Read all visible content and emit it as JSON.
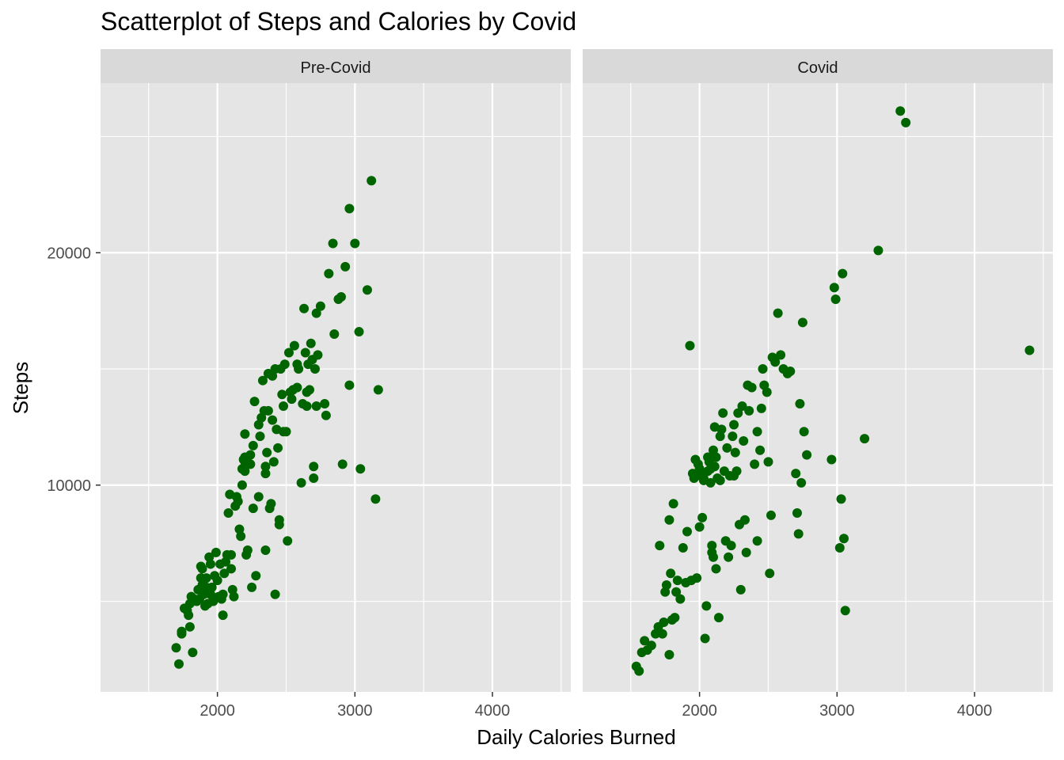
{
  "chart_data": {
    "type": "scatter",
    "title": "Scatterplot of Steps and Calories by Covid",
    "xlabel": "Daily Calories Burned",
    "ylabel": "Steps",
    "xlim": [
      1150,
      4570
    ],
    "ylim": [
      1100,
      27300
    ],
    "x_ticks": [
      2000,
      3000,
      4000
    ],
    "x_tick_labels": [
      "2000",
      "3000",
      "4000"
    ],
    "y_ticks": [
      10000,
      20000
    ],
    "y_tick_labels": [
      "10000",
      "20000"
    ],
    "grid": true,
    "point_color": "#006400",
    "panel_color": "#e5e5e5",
    "strip_color": "#d9d9d9",
    "facets": [
      {
        "label": "Pre-Covid",
        "points": [
          [
            1700,
            3000
          ],
          [
            1720,
            2300
          ],
          [
            1740,
            3600
          ],
          [
            1740,
            3700
          ],
          [
            1760,
            4700
          ],
          [
            1780,
            4600
          ],
          [
            1790,
            4400
          ],
          [
            1800,
            4900
          ],
          [
            1800,
            3900
          ],
          [
            1810,
            5200
          ],
          [
            1820,
            2800
          ],
          [
            1830,
            5100
          ],
          [
            1850,
            5000
          ],
          [
            1860,
            5500
          ],
          [
            1870,
            5100
          ],
          [
            1880,
            6000
          ],
          [
            1880,
            6500
          ],
          [
            1890,
            6400
          ],
          [
            1890,
            5700
          ],
          [
            1900,
            5300
          ],
          [
            1910,
            4800
          ],
          [
            1920,
            5600
          ],
          [
            1920,
            6000
          ],
          [
            1930,
            4900
          ],
          [
            1940,
            6900
          ],
          [
            1950,
            6600
          ],
          [
            1950,
            5300
          ],
          [
            1960,
            5600
          ],
          [
            1970,
            5000
          ],
          [
            1980,
            6100
          ],
          [
            1990,
            7100
          ],
          [
            2000,
            5900
          ],
          [
            2010,
            5200
          ],
          [
            2020,
            6600
          ],
          [
            2030,
            5100
          ],
          [
            2040,
            4400
          ],
          [
            2040,
            5300
          ],
          [
            2050,
            6200
          ],
          [
            2060,
            6700
          ],
          [
            2070,
            7000
          ],
          [
            2080,
            8800
          ],
          [
            2090,
            9600
          ],
          [
            2100,
            7000
          ],
          [
            2100,
            6400
          ],
          [
            2110,
            5500
          ],
          [
            2120,
            5200
          ],
          [
            2130,
            9100
          ],
          [
            2140,
            9500
          ],
          [
            2150,
            9300
          ],
          [
            2160,
            8100
          ],
          [
            2170,
            7800
          ],
          [
            2180,
            10000
          ],
          [
            2180,
            10700
          ],
          [
            2190,
            11100
          ],
          [
            2200,
            11000
          ],
          [
            2200,
            10600
          ],
          [
            2200,
            12200
          ],
          [
            2210,
            7000
          ],
          [
            2220,
            7200
          ],
          [
            2240,
            11300
          ],
          [
            2240,
            10900
          ],
          [
            2250,
            5600
          ],
          [
            2260,
            11700
          ],
          [
            2270,
            13600
          ],
          [
            2280,
            6100
          ],
          [
            2300,
            9500
          ],
          [
            2310,
            12100
          ],
          [
            2320,
            12900
          ],
          [
            2330,
            14500
          ],
          [
            2340,
            13200
          ],
          [
            2350,
            10500
          ],
          [
            2350,
            10800
          ],
          [
            2350,
            7200
          ],
          [
            2360,
            11400
          ],
          [
            2370,
            13200
          ],
          [
            2380,
            9000
          ],
          [
            2390,
            9200
          ],
          [
            2400,
            12800
          ],
          [
            2400,
            14700
          ],
          [
            2410,
            11000
          ],
          [
            2420,
            5300
          ],
          [
            2430,
            12400
          ],
          [
            2440,
            11600
          ],
          [
            2450,
            8500
          ],
          [
            2450,
            8300
          ],
          [
            2460,
            15000
          ],
          [
            2470,
            13900
          ],
          [
            2480,
            13400
          ],
          [
            2490,
            15200
          ],
          [
            2500,
            12300
          ],
          [
            2510,
            7600
          ],
          [
            2520,
            15700
          ],
          [
            2530,
            14000
          ],
          [
            2540,
            13700
          ],
          [
            2550,
            14100
          ],
          [
            2560,
            16000
          ],
          [
            2580,
            14200
          ],
          [
            2590,
            15000
          ],
          [
            2610,
            10100
          ],
          [
            2620,
            13500
          ],
          [
            2630,
            17600
          ],
          [
            2640,
            15700
          ],
          [
            2650,
            13400
          ],
          [
            2660,
            15200
          ],
          [
            2670,
            14100
          ],
          [
            2680,
            16100
          ],
          [
            2690,
            15400
          ],
          [
            2700,
            10800
          ],
          [
            2700,
            10300
          ],
          [
            2710,
            15000
          ],
          [
            2720,
            17400
          ],
          [
            2730,
            15600
          ],
          [
            2750,
            17700
          ],
          [
            2780,
            13500
          ],
          [
            2790,
            13000
          ],
          [
            2810,
            19100
          ],
          [
            2840,
            20400
          ],
          [
            2850,
            16500
          ],
          [
            2880,
            18000
          ],
          [
            2900,
            18100
          ],
          [
            2910,
            10900
          ],
          [
            2930,
            19400
          ],
          [
            2960,
            14300
          ],
          [
            2960,
            21900
          ],
          [
            3000,
            20400
          ],
          [
            3030,
            16600
          ],
          [
            3040,
            10700
          ],
          [
            3090,
            18400
          ],
          [
            3120,
            23100
          ],
          [
            3150,
            9400
          ],
          [
            3170,
            14100
          ],
          [
            2260,
            9000
          ],
          [
            2300,
            12600
          ],
          [
            2480,
            12300
          ],
          [
            2720,
            13400
          ],
          [
            2650,
            14000
          ],
          [
            2200,
            11200
          ],
          [
            2370,
            14800
          ],
          [
            2420,
            15000
          ],
          [
            2580,
            15200
          ]
        ]
      },
      {
        "label": "Covid",
        "points": [
          [
            1540,
            2200
          ],
          [
            1560,
            2000
          ],
          [
            1580,
            2800
          ],
          [
            1600,
            3300
          ],
          [
            1620,
            2900
          ],
          [
            1650,
            3100
          ],
          [
            1680,
            3600
          ],
          [
            1700,
            3900
          ],
          [
            1710,
            7400
          ],
          [
            1730,
            3600
          ],
          [
            1740,
            4100
          ],
          [
            1750,
            5400
          ],
          [
            1760,
            5700
          ],
          [
            1780,
            2700
          ],
          [
            1780,
            8500
          ],
          [
            1790,
            6200
          ],
          [
            1800,
            4200
          ],
          [
            1810,
            9200
          ],
          [
            1820,
            4300
          ],
          [
            1830,
            5400
          ],
          [
            1840,
            5900
          ],
          [
            1860,
            5100
          ],
          [
            1880,
            7300
          ],
          [
            1900,
            5800
          ],
          [
            1910,
            8000
          ],
          [
            1930,
            16000
          ],
          [
            1940,
            5900
          ],
          [
            1950,
            10500
          ],
          [
            1960,
            10300
          ],
          [
            1970,
            11100
          ],
          [
            1980,
            6000
          ],
          [
            1990,
            10900
          ],
          [
            2000,
            10700
          ],
          [
            2000,
            8200
          ],
          [
            2010,
            10400
          ],
          [
            2020,
            8600
          ],
          [
            2030,
            10200
          ],
          [
            2040,
            3400
          ],
          [
            2050,
            4800
          ],
          [
            2060,
            10600
          ],
          [
            2070,
            11000
          ],
          [
            2080,
            10100
          ],
          [
            2090,
            7400
          ],
          [
            2090,
            7100
          ],
          [
            2100,
            11500
          ],
          [
            2100,
            6900
          ],
          [
            2110,
            12500
          ],
          [
            2120,
            11200
          ],
          [
            2120,
            6400
          ],
          [
            2130,
            10300
          ],
          [
            2140,
            4300
          ],
          [
            2150,
            12100
          ],
          [
            2160,
            12400
          ],
          [
            2170,
            13100
          ],
          [
            2180,
            10600
          ],
          [
            2190,
            7600
          ],
          [
            2200,
            11600
          ],
          [
            2210,
            6900
          ],
          [
            2220,
            10400
          ],
          [
            2230,
            7400
          ],
          [
            2240,
            12100
          ],
          [
            2250,
            12600
          ],
          [
            2260,
            11400
          ],
          [
            2270,
            10600
          ],
          [
            2280,
            13100
          ],
          [
            2290,
            8300
          ],
          [
            2300,
            5500
          ],
          [
            2310,
            13400
          ],
          [
            2330,
            8500
          ],
          [
            2340,
            7100
          ],
          [
            2350,
            14300
          ],
          [
            2360,
            13200
          ],
          [
            2380,
            14200
          ],
          [
            2400,
            10900
          ],
          [
            2420,
            7600
          ],
          [
            2440,
            11500
          ],
          [
            2450,
            13300
          ],
          [
            2460,
            15000
          ],
          [
            2470,
            14300
          ],
          [
            2490,
            14000
          ],
          [
            2500,
            11000
          ],
          [
            2510,
            6200
          ],
          [
            2520,
            8700
          ],
          [
            2550,
            15300
          ],
          [
            2570,
            17400
          ],
          [
            2590,
            15600
          ],
          [
            2610,
            15000
          ],
          [
            2640,
            14800
          ],
          [
            2660,
            14900
          ],
          [
            2700,
            10500
          ],
          [
            2710,
            8800
          ],
          [
            2720,
            7900
          ],
          [
            2730,
            13500
          ],
          [
            2740,
            10100
          ],
          [
            2750,
            17000
          ],
          [
            2760,
            12300
          ],
          [
            2780,
            11300
          ],
          [
            2960,
            11100
          ],
          [
            2980,
            18500
          ],
          [
            2990,
            18000
          ],
          [
            3020,
            7300
          ],
          [
            3030,
            9400
          ],
          [
            3040,
            19100
          ],
          [
            3050,
            7700
          ],
          [
            3060,
            4600
          ],
          [
            3200,
            12000
          ],
          [
            3300,
            20100
          ],
          [
            3460,
            26100
          ],
          [
            3500,
            25600
          ],
          [
            4400,
            15800
          ],
          [
            2000,
            10600
          ],
          [
            2030,
            10300
          ],
          [
            2060,
            11200
          ],
          [
            2080,
            10700
          ],
          [
            2110,
            10800
          ],
          [
            2150,
            10200
          ],
          [
            2250,
            10400
          ],
          [
            2320,
            11900
          ],
          [
            2420,
            12300
          ],
          [
            2530,
            15500
          ]
        ]
      }
    ]
  }
}
